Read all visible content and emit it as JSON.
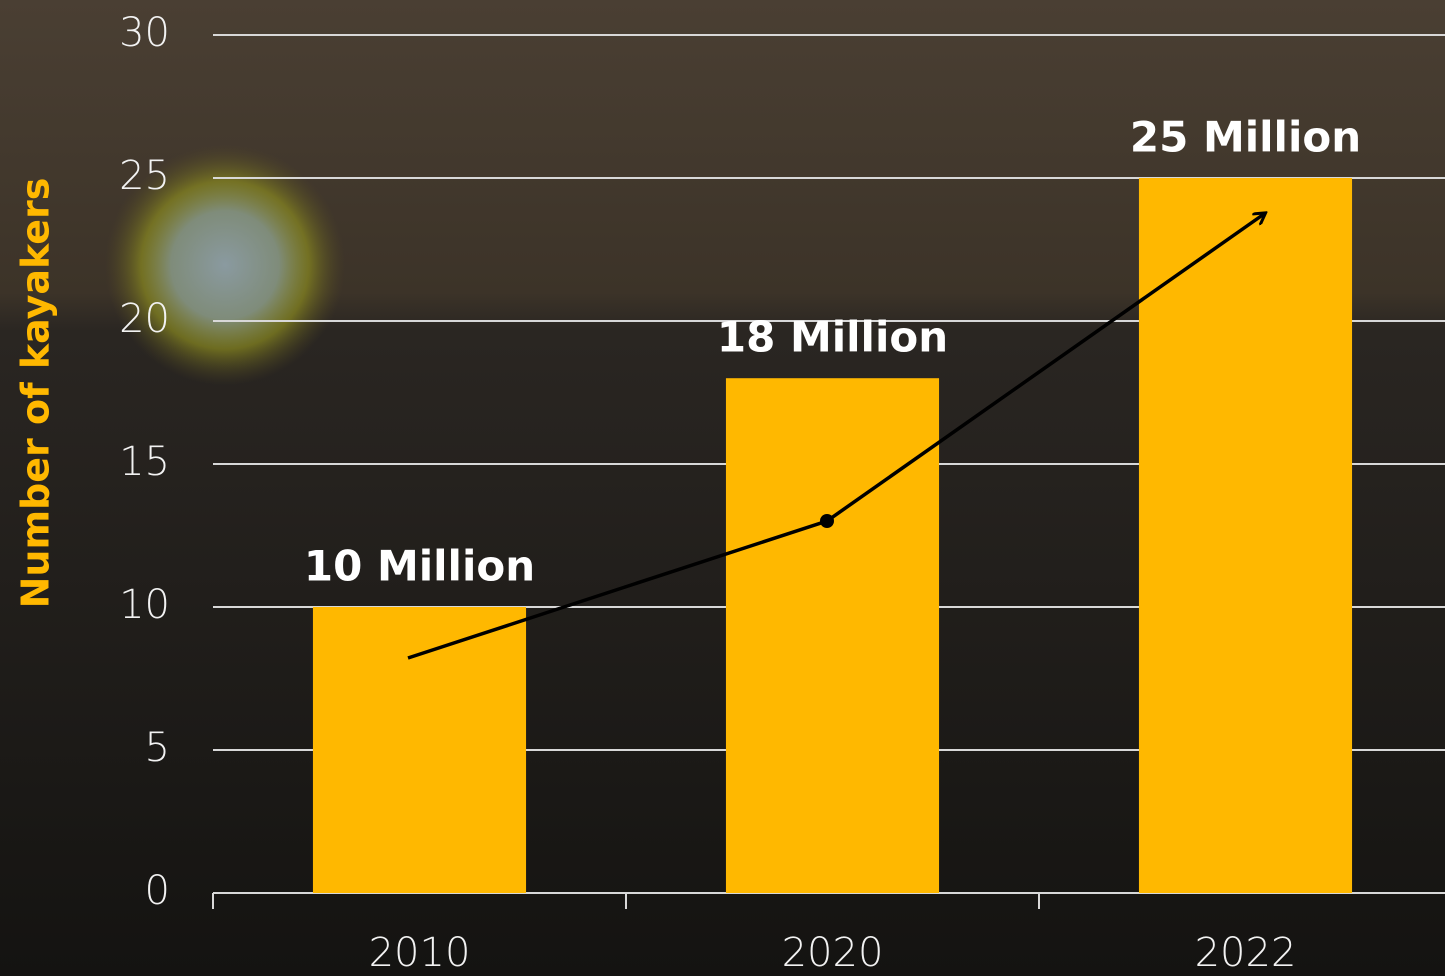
{
  "chart_data": {
    "type": "bar",
    "y_label": "Number of kayakers",
    "categories": [
      "2010",
      "2020",
      "2022"
    ],
    "values": [
      10,
      18,
      25
    ],
    "value_labels": [
      "10 Million",
      "18 Million",
      "25 Million"
    ],
    "color": "#ffb800",
    "ylim": [
      0,
      30
    ],
    "yticks": [
      0,
      5,
      10,
      15,
      20,
      25,
      30
    ],
    "grid": true
  }
}
